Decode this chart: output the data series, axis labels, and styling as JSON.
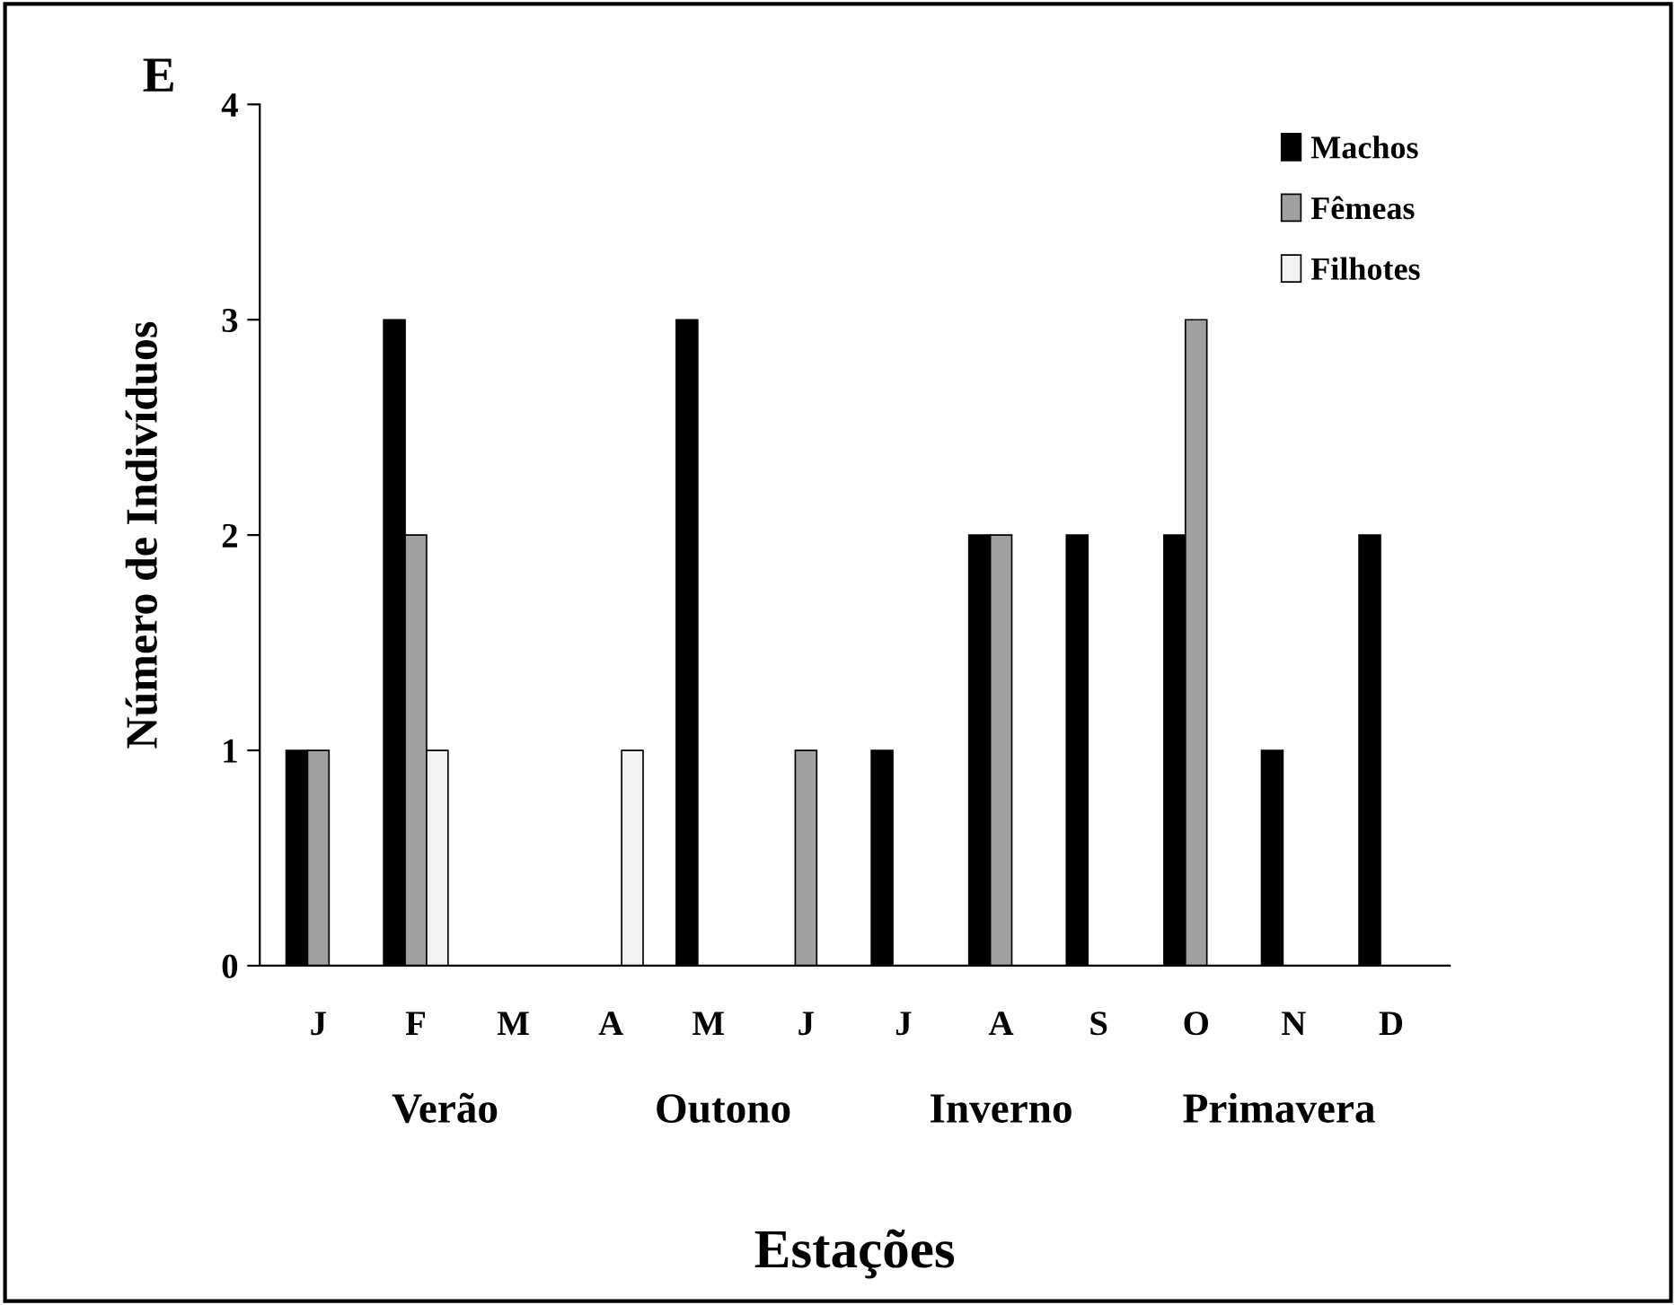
{
  "chart_data": {
    "type": "bar",
    "xlabel": "Estações",
    "ylabel": "Número de Indivíduos",
    "categories": [
      "J",
      "F",
      "M",
      "A",
      "M",
      "J",
      "J",
      "A",
      "S",
      "O",
      "N",
      "D"
    ],
    "series": [
      {
        "name": "Machos",
        "color": "#000000",
        "values": [
          1,
          3,
          0,
          0,
          3,
          0,
          1,
          2,
          2,
          2,
          1,
          2
        ]
      },
      {
        "name": "Fêmeas",
        "color": "#a0a0a0",
        "values": [
          1,
          2,
          0,
          0,
          0,
          1,
          0,
          2,
          0,
          3,
          0,
          0
        ]
      },
      {
        "name": "Filhotes",
        "color": "#f2f2f2",
        "values": [
          0,
          1,
          0,
          1,
          0,
          0,
          0,
          0,
          0,
          0,
          0,
          0
        ]
      }
    ],
    "ylim": [
      0,
      4
    ],
    "yticks": [
      0,
      1,
      2,
      3,
      4
    ],
    "grid": false,
    "legend": "top right",
    "annotations": [
      "E",
      "Verão",
      "Outono",
      "Inverno",
      "Primavera"
    ]
  }
}
